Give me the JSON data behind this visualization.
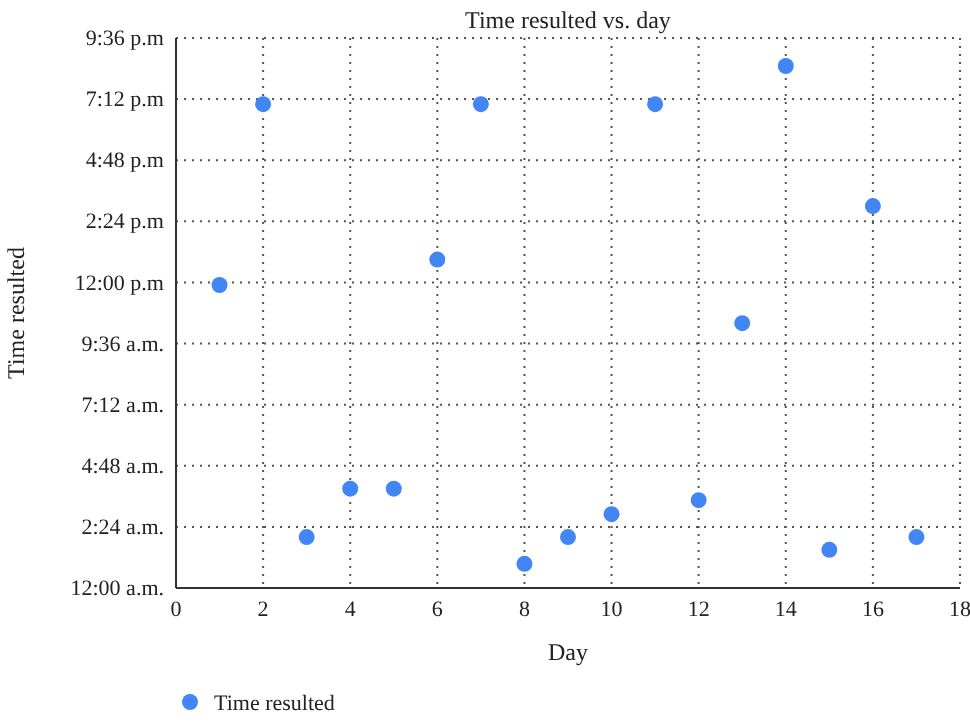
{
  "chart_data": {
    "type": "scatter",
    "title": "Time resulted vs. day",
    "xlabel": "Day",
    "ylabel": "Time resulted",
    "x": [
      1,
      2,
      3,
      4,
      5,
      6,
      7,
      8,
      9,
      10,
      11,
      12,
      13,
      14,
      15,
      16,
      17
    ],
    "series": [
      {
        "name": "Time resulted",
        "color": "#4285f4",
        "values": [
          11.9,
          19.0,
          2.0,
          3.9,
          3.9,
          12.9,
          19.0,
          0.95,
          2.0,
          2.9,
          19.0,
          3.45,
          10.4,
          20.5,
          1.5,
          15.0,
          2.0
        ]
      }
    ],
    "xlim": [
      0,
      18
    ],
    "xticks": [
      0,
      2,
      4,
      6,
      8,
      10,
      12,
      14,
      16,
      18
    ],
    "ylim": [
      0,
      21.6
    ],
    "yticks": [
      {
        "value": 0,
        "label": "12:00 a.m."
      },
      {
        "value": 2.4,
        "label": "2:24 a.m."
      },
      {
        "value": 4.8,
        "label": "4:48 a.m."
      },
      {
        "value": 7.2,
        "label": "7:12 a.m."
      },
      {
        "value": 9.6,
        "label": "9:36 a.m."
      },
      {
        "value": 12,
        "label": "12:00 p.m"
      },
      {
        "value": 14.4,
        "label": "2:24 p.m"
      },
      {
        "value": 16.8,
        "label": "4:48 p.m"
      },
      {
        "value": 19.2,
        "label": "7:12 p.m"
      },
      {
        "value": 21.6,
        "label": "9:36 p.m"
      }
    ],
    "grid": true,
    "legend": "bottom",
    "marker": "circle"
  }
}
